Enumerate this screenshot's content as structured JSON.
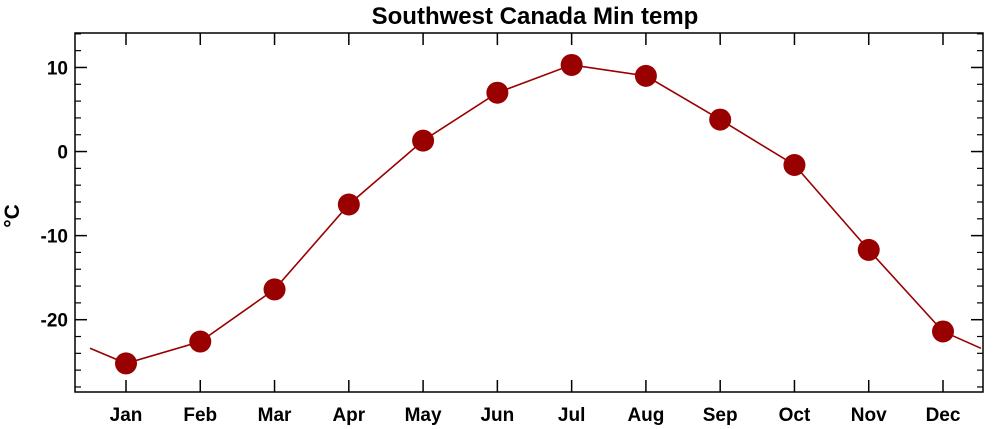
{
  "chart_data": {
    "type": "line",
    "title": "Southwest Canada Min temp",
    "xlabel": "",
    "ylabel": "°C",
    "categories": [
      "Jan",
      "Feb",
      "Mar",
      "Apr",
      "May",
      "Jun",
      "Jul",
      "Aug",
      "Sep",
      "Oct",
      "Nov",
      "Dec"
    ],
    "series": [
      {
        "name": "",
        "values": [
          -25.2,
          -22.6,
          -16.4,
          -6.3,
          1.3,
          7.0,
          10.3,
          9.0,
          3.8,
          -1.6,
          -11.7,
          -21.4
        ],
        "color": "#990000",
        "marker": "filled-circle"
      }
    ],
    "wrap_values": {
      "start": -23.4,
      "end": -23.4
    },
    "ylim": [
      -28.6,
      14.1
    ],
    "yticks": [
      -20,
      -10,
      0,
      10
    ],
    "ytick_labels": [
      "-20",
      "-10",
      "0",
      "10"
    ],
    "grid": false,
    "legend": "none"
  }
}
